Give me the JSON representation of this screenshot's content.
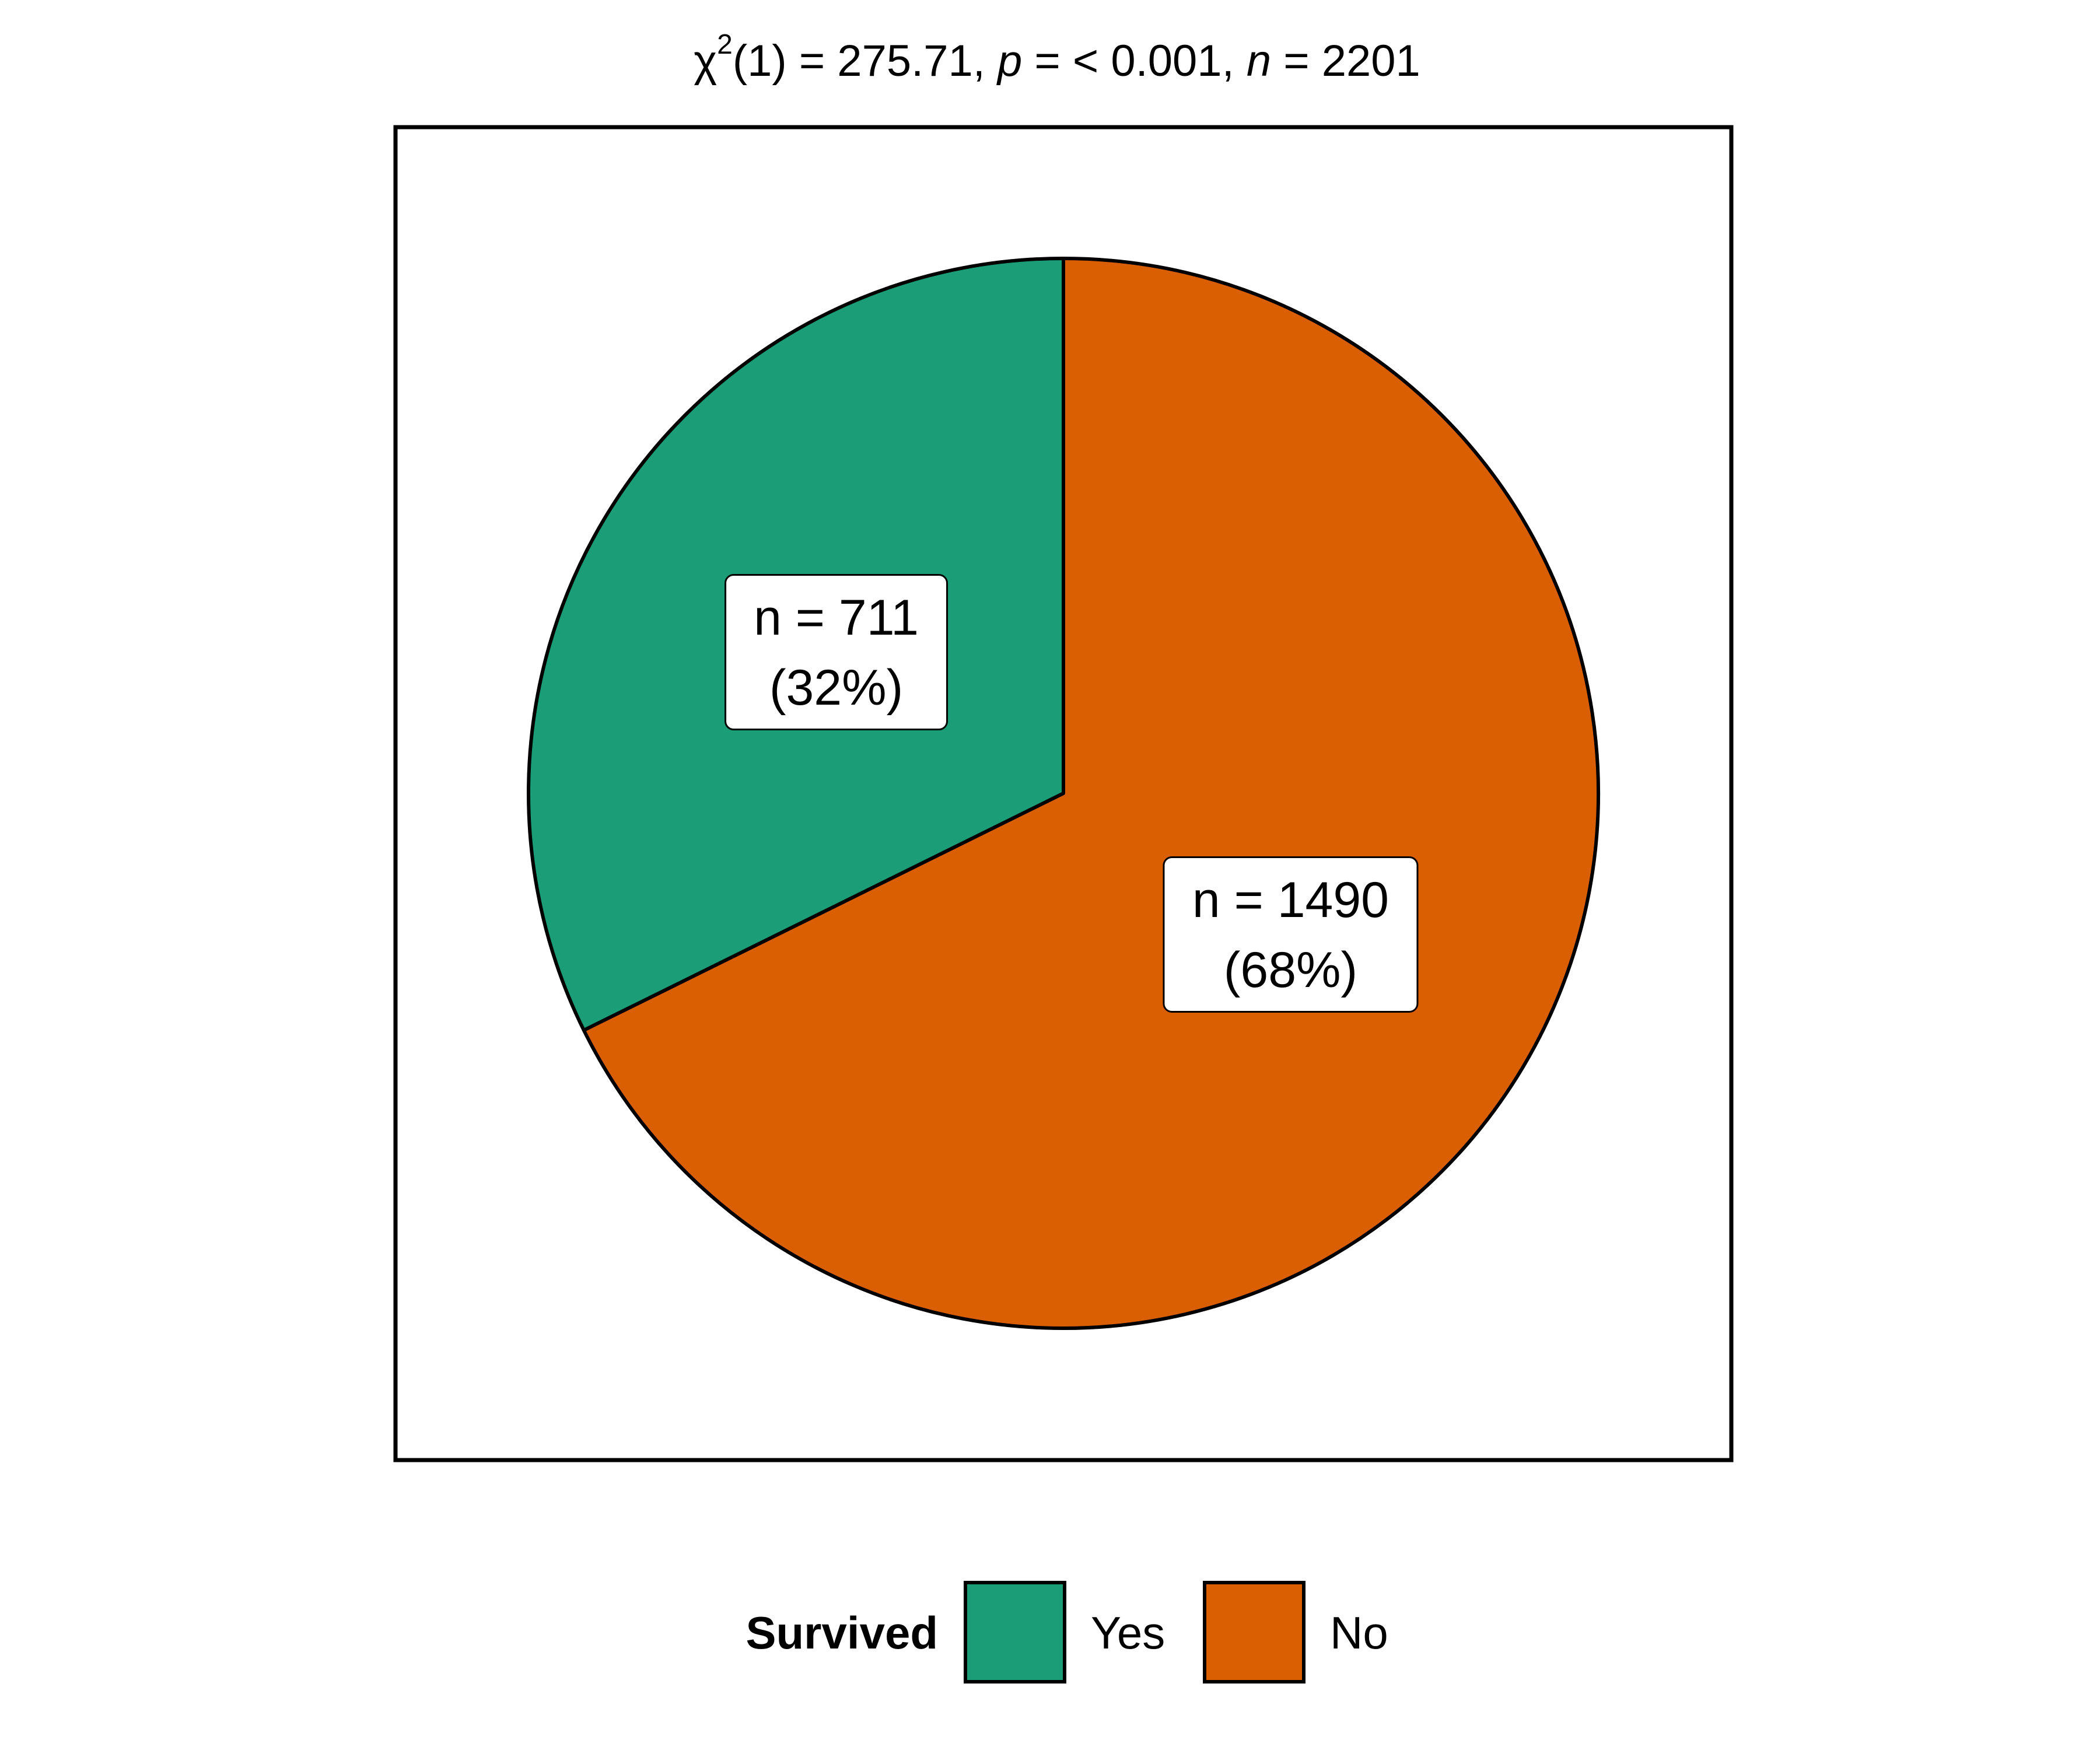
{
  "chart_data": {
    "type": "pie",
    "title": {
      "chi_symbol": "χ",
      "chi_exponent": "2",
      "df_and_stat": "(1) = 275.71, ",
      "p_symbol": "p",
      "p_value": " = < 0.001, ",
      "n_symbol": "n",
      "n_value": " = 2201"
    },
    "legend_title": "Survived",
    "legend_position": "bottom",
    "slices": [
      {
        "category": "Yes",
        "value": 711,
        "percent": 32,
        "label_count": "n = 711",
        "label_percent": "(32%)",
        "color": "#1b9e77"
      },
      {
        "category": "No",
        "value": 1490,
        "percent": 68,
        "label_count": "n = 1490",
        "label_percent": "(68%)",
        "color": "#d95f02"
      }
    ],
    "total": 2201
  }
}
